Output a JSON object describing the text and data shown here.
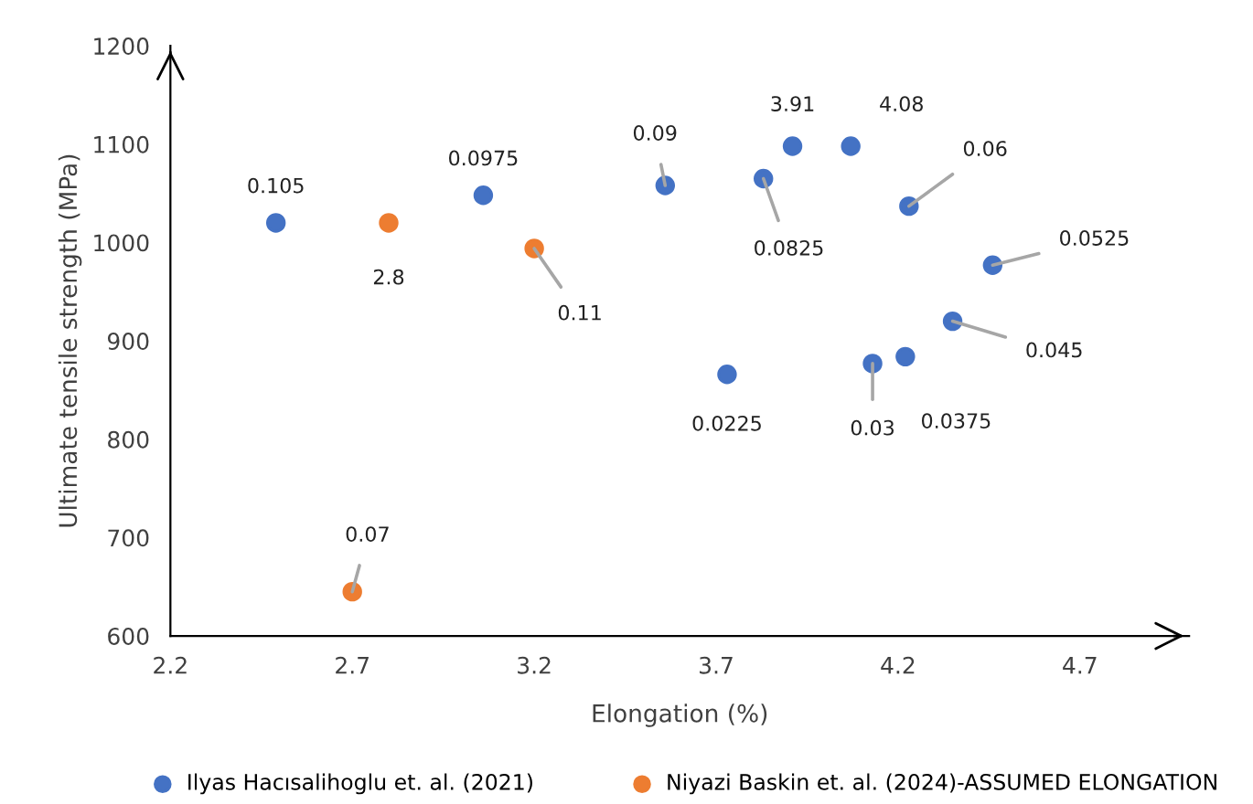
{
  "chart_data": {
    "type": "scatter",
    "xlabel": "Elongation (%)",
    "ylabel": "Ultimate tensile strength (MPa)",
    "xlim": [
      2.2,
      5.0
    ],
    "ylim": [
      600,
      1200
    ],
    "xticks": [
      2.2,
      2.7,
      3.2,
      3.7,
      4.2,
      4.7
    ],
    "yticks": [
      600,
      700,
      800,
      900,
      1000,
      1100,
      1200
    ],
    "grid": false,
    "legend": "bottom",
    "marker": "circle",
    "series": [
      {
        "name": "Ilyas Hacısalihoglu et. al. (2021)",
        "color": "#4472c4",
        "x": [
          2.49,
          3.06,
          3.56,
          3.91,
          4.07,
          3.83,
          4.23,
          4.46,
          4.35,
          4.22,
          4.13,
          3.73
        ],
        "values": [
          1020,
          1048,
          1058,
          1098,
          1098,
          1065,
          1037,
          977,
          920,
          884,
          877,
          866
        ]
      },
      {
        "name": "Niyazi Baskin et. al. (2024)-ASSUMED ELONGATION",
        "color": "#ed7d31",
        "x": [
          2.8,
          3.2,
          2.7
        ],
        "values": [
          1020,
          994,
          645
        ]
      }
    ],
    "annotations": [
      {
        "text": "0.105",
        "x": 2.49,
        "y": 1020
      },
      {
        "text": "0.0975",
        "x": 3.06,
        "y": 1048
      },
      {
        "text": "0.09",
        "x": 3.56,
        "y": 1058
      },
      {
        "text": "3.91",
        "x": 3.91,
        "y": 1098
      },
      {
        "text": "4.08",
        "x": 4.07,
        "y": 1098
      },
      {
        "text": "0.0825",
        "x": 3.83,
        "y": 1065
      },
      {
        "text": "0.06",
        "x": 4.23,
        "y": 1037
      },
      {
        "text": "0.0525",
        "x": 4.46,
        "y": 977
      },
      {
        "text": "0.045",
        "x": 4.35,
        "y": 920
      },
      {
        "text": "0.0375",
        "x": 4.22,
        "y": 884
      },
      {
        "text": "0.03",
        "x": 4.13,
        "y": 877
      },
      {
        "text": "0.0225",
        "x": 3.73,
        "y": 866
      },
      {
        "text": "2.8",
        "x": 2.8,
        "y": 1020
      },
      {
        "text": "0.11",
        "x": 3.2,
        "y": 994
      },
      {
        "text": "0.07",
        "x": 2.7,
        "y": 645
      }
    ]
  }
}
